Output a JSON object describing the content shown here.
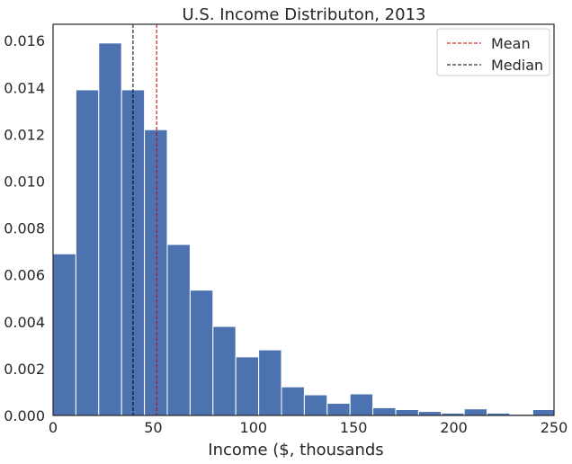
{
  "chart_data": {
    "type": "bar",
    "title": "U.S. Income Distributon, 2013",
    "xlabel": "Income ($, thousands",
    "ylabel": "",
    "xlim": [
      0,
      250
    ],
    "ylim": [
      0,
      0.0167
    ],
    "xticks": [
      "0",
      "50",
      "100",
      "150",
      "200",
      "250"
    ],
    "yticks": [
      "0.000",
      "0.002",
      "0.004",
      "0.006",
      "0.008",
      "0.010",
      "0.012",
      "0.014",
      "0.016"
    ],
    "bin_width": 11.4,
    "bin_starts": [
      0,
      11.4,
      22.8,
      34.2,
      45.6,
      57.0,
      68.4,
      79.8,
      91.2,
      102.6,
      114.0,
      125.4,
      136.8,
      148.2,
      159.6,
      171.0,
      182.4,
      193.8,
      205.2,
      216.6,
      228.0,
      239.4
    ],
    "values": [
      0.0069,
      0.0139,
      0.0159,
      0.0139,
      0.0122,
      0.0073,
      0.00535,
      0.0038,
      0.0025,
      0.0028,
      0.00122,
      0.00088,
      0.00052,
      0.00092,
      0.00033,
      0.00025,
      0.00017,
      0.0001,
      0.00028,
      0.0001,
      5e-05,
      0.00025
    ],
    "bar_color": "#4c72b0",
    "grid": false,
    "legend_position": "top-right",
    "reference_lines": [
      {
        "label": "Mean",
        "x": 51.7,
        "color": "#c00000",
        "style": "dashed"
      },
      {
        "label": "Median",
        "x": 39.9,
        "color": "#000000",
        "style": "dashed"
      }
    ]
  }
}
